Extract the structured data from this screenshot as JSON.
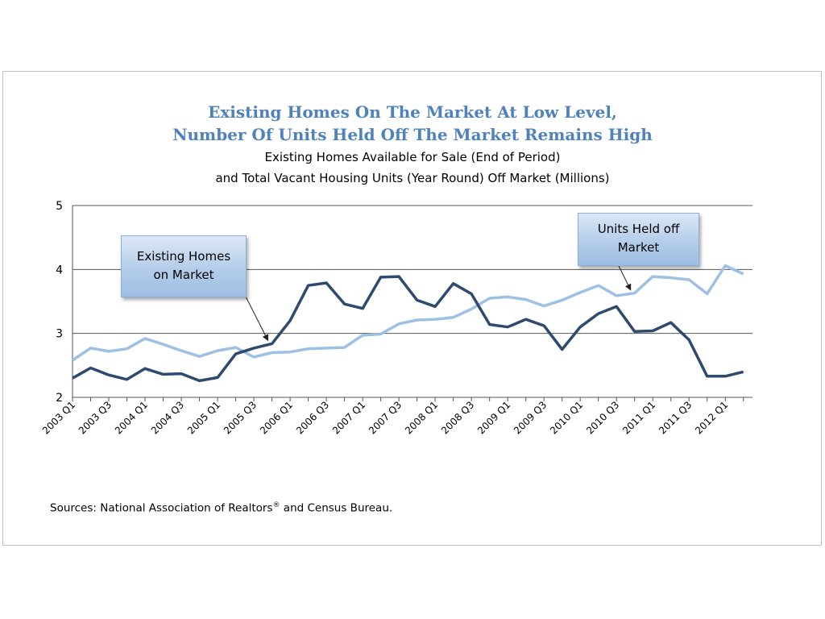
{
  "chart_data": {
    "type": "line",
    "title": "Existing Homes On The Market At Low Level, Number Of Units Held Off The Market Remains High",
    "title_lines": [
      "Existing Homes On The Market At Low Level,",
      "Number Of Units Held Off The Market Remains High"
    ],
    "subtitle": "Existing Homes Available for Sale (End of Period) and Total Vacant Housing Units (Year Round) Off Market (Millions)",
    "subtitle_lines": [
      "Existing Homes Available for Sale (End of Period)",
      "and Total Vacant Housing Units (Year Round) Off Market (Millions)"
    ],
    "ylim": [
      2,
      5
    ],
    "yticks": [
      2,
      3,
      4,
      5
    ],
    "grid": true,
    "x": [
      "2003 Q1",
      "2003 Q2",
      "2003 Q3",
      "2003 Q4",
      "2004 Q1",
      "2004 Q2",
      "2004 Q3",
      "2004 Q4",
      "2005 Q1",
      "2005 Q2",
      "2005 Q3",
      "2005 Q4",
      "2006 Q1",
      "2006 Q2",
      "2006 Q3",
      "2006 Q4",
      "2007 Q1",
      "2007 Q2",
      "2007 Q3",
      "2007 Q4",
      "2008 Q1",
      "2008 Q2",
      "2008 Q3",
      "2008 Q4",
      "2009 Q1",
      "2009 Q2",
      "2009 Q3",
      "2009 Q4",
      "2010 Q1",
      "2010 Q2",
      "2010 Q3",
      "2010 Q4",
      "2011 Q1",
      "2011 Q2",
      "2011 Q3",
      "2011 Q4",
      "2012 Q1",
      "2012 Q2"
    ],
    "xtick_labels": [
      "2003 Q1",
      "2003 Q3",
      "2004 Q1",
      "2004 Q3",
      "2005 Q1",
      "2005 Q3",
      "2006 Q1",
      "2006 Q3",
      "2007 Q1",
      "2007 Q3",
      "2008 Q1",
      "2008 Q3",
      "2009 Q1",
      "2009 Q3",
      "2010 Q1",
      "2010 Q3",
      "2011 Q1",
      "2011 Q3",
      "2012 Q1"
    ],
    "series": [
      {
        "name": "Existing Homes on Market",
        "color": "#2e4a6e",
        "values": [
          2.3,
          2.46,
          2.35,
          2.28,
          2.45,
          2.36,
          2.37,
          2.26,
          2.31,
          2.68,
          2.77,
          2.84,
          3.2,
          3.75,
          3.79,
          3.46,
          3.39,
          3.88,
          3.89,
          3.52,
          3.42,
          3.78,
          3.62,
          3.14,
          3.1,
          3.22,
          3.12,
          2.75,
          3.1,
          3.31,
          3.42,
          3.03,
          3.04,
          3.17,
          2.9,
          2.33,
          2.33,
          2.4
        ]
      },
      {
        "name": "Units Held off Market",
        "color": "#9dc0e3",
        "values": [
          2.58,
          2.77,
          2.72,
          2.76,
          2.92,
          2.83,
          2.73,
          2.64,
          2.73,
          2.78,
          2.63,
          2.7,
          2.71,
          2.76,
          2.77,
          2.78,
          2.97,
          2.99,
          3.15,
          3.21,
          3.22,
          3.25,
          3.38,
          3.55,
          3.57,
          3.53,
          3.43,
          3.52,
          3.64,
          3.75,
          3.59,
          3.63,
          3.89,
          3.87,
          3.84,
          3.62,
          4.06,
          3.93
        ]
      }
    ],
    "annotations": [
      {
        "text": "Existing Homes on Market",
        "lines": [
          "Existing Homes",
          "on Market"
        ],
        "target_series": 0,
        "target_index": 11
      },
      {
        "text": "Units Held off Market",
        "lines": [
          "Units Held off",
          "Market"
        ],
        "target_series": 1,
        "target_index": 31
      }
    ]
  },
  "source": {
    "prefix": "Sources: National Association of Realtors",
    "sup": "®",
    "suffix": " and Census Bureau."
  }
}
